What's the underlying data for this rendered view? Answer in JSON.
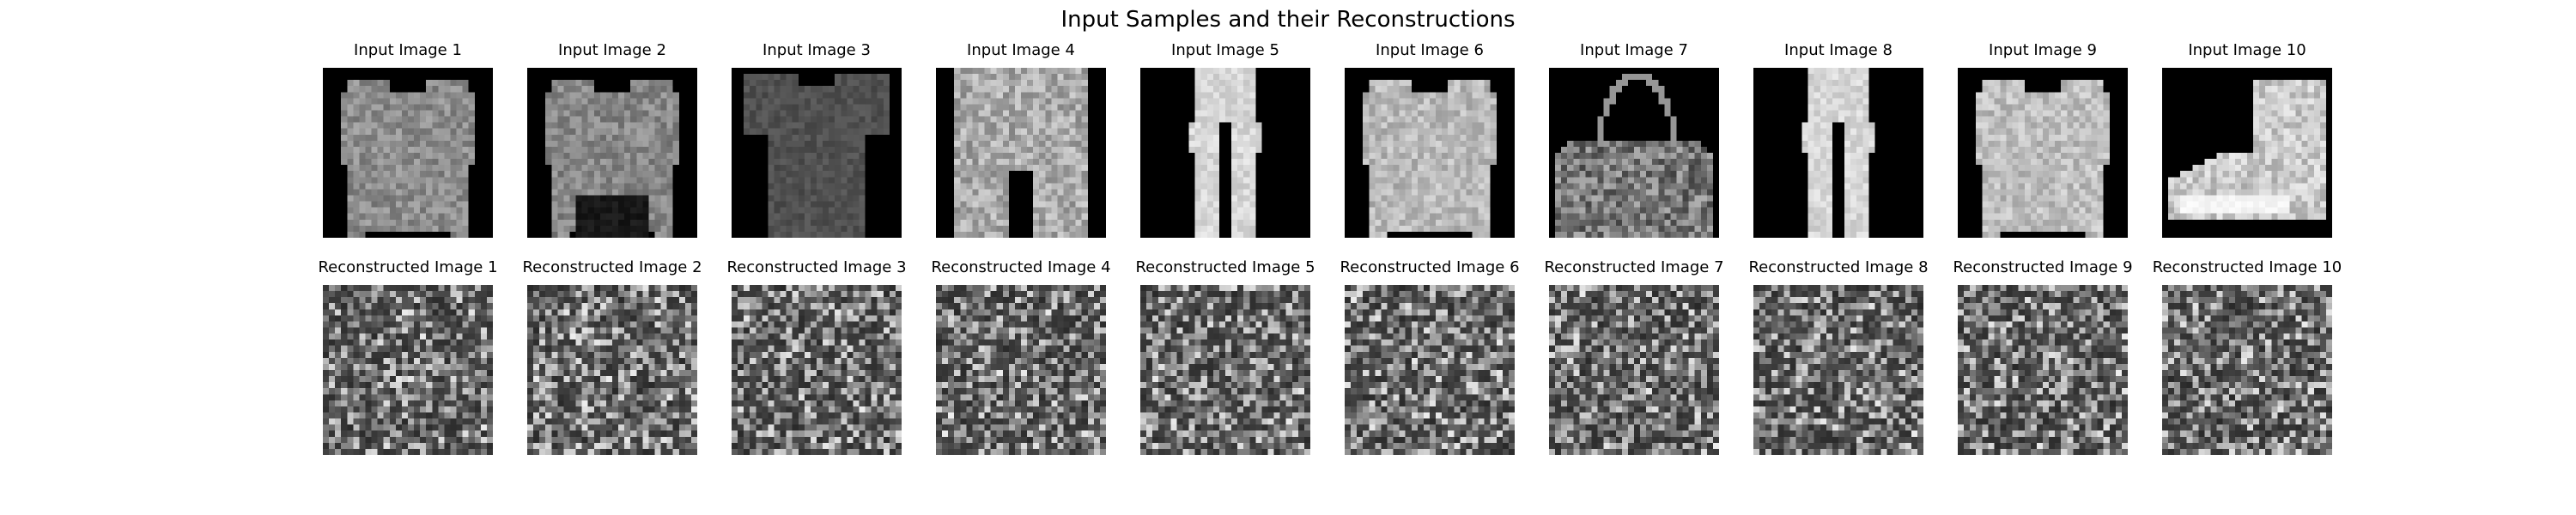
{
  "title": "Input Samples and their Reconstructions",
  "rows": [
    {
      "name": "inputs",
      "labels": [
        "Input Image 1",
        "Input Image 2",
        "Input Image 3",
        "Input Image 4",
        "Input Image 5",
        "Input Image 6",
        "Input Image 7",
        "Input Image 8",
        "Input Image 9",
        "Input Image 10"
      ],
      "images": [
        "long-sleeve shirt",
        "long-sleeve top",
        "t-shirt",
        "shorts",
        "trousers",
        "pullover",
        "bag",
        "trousers",
        "shirt",
        "ankle boot"
      ]
    },
    {
      "name": "reconstructions",
      "labels": [
        "Reconstructed Image 1",
        "Reconstructed Image 2",
        "Reconstructed Image 3",
        "Reconstructed Image 4",
        "Reconstructed Image 5",
        "Reconstructed Image 6",
        "Reconstructed Image 7",
        "Reconstructed Image 8",
        "Reconstructed Image 9",
        "Reconstructed Image 10"
      ],
      "images": [
        "grayscale noise",
        "grayscale noise",
        "grayscale noise",
        "grayscale noise",
        "grayscale noise",
        "grayscale noise",
        "grayscale noise",
        "grayscale noise",
        "grayscale noise",
        "grayscale noise"
      ]
    }
  ],
  "colormap": "gray",
  "background": "#000000"
}
